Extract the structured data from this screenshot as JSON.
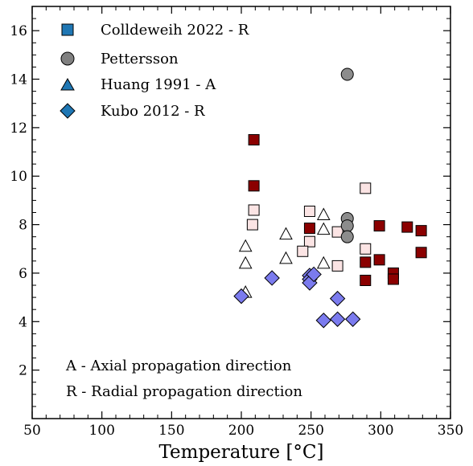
{
  "chart_data": {
    "type": "scatter",
    "xlabel": "Temperature [°C]",
    "xlim": [
      50,
      350
    ],
    "ylim": [
      0,
      17
    ],
    "xticks": [
      50,
      100,
      150,
      200,
      250,
      300,
      350
    ],
    "yticks": [
      2,
      4,
      6,
      8,
      10,
      12,
      14,
      16
    ],
    "grid": false,
    "legend_position": "top-left",
    "legend": [
      {
        "label": "Colldeweih 2022 - R",
        "marker": "square",
        "color": "#1f77b4"
      },
      {
        "label": "Pettersson",
        "marker": "circle",
        "color": "#808080"
      },
      {
        "label": "Huang 1991 - A",
        "marker": "triangle",
        "color": "#1f77b4"
      },
      {
        "label": "Kubo 2012 - R",
        "marker": "diamond",
        "color": "#1f77b4"
      }
    ],
    "series": [
      {
        "marker": "square",
        "fill": "#8b0000",
        "points": [
          [
            209,
            11.5
          ],
          [
            209,
            9.6
          ],
          [
            249,
            7.85
          ],
          [
            289,
            6.45
          ],
          [
            289,
            5.7
          ],
          [
            299,
            7.95
          ],
          [
            299,
            6.55
          ],
          [
            309,
            6.0
          ],
          [
            309,
            5.75
          ],
          [
            319,
            7.9
          ],
          [
            329,
            7.75
          ],
          [
            329,
            6.85
          ]
        ]
      },
      {
        "marker": "square",
        "fill": "#fbe4e4",
        "points": [
          [
            209,
            8.6
          ],
          [
            208,
            8.0
          ],
          [
            249,
            8.55
          ],
          [
            249,
            7.3
          ],
          [
            244,
            6.9
          ],
          [
            269,
            7.7
          ],
          [
            269,
            6.3
          ],
          [
            289,
            9.5
          ],
          [
            289,
            7.0
          ]
        ]
      },
      {
        "marker": "circle",
        "fill": "#8c8c8c",
        "points": [
          [
            276,
            14.2
          ],
          [
            276,
            8.25
          ],
          [
            276,
            7.95
          ],
          [
            276,
            7.5
          ]
        ]
      },
      {
        "marker": "triangle",
        "fill": "#ffffff",
        "points": [
          [
            203,
            7.1
          ],
          [
            203,
            6.4
          ],
          [
            203,
            5.2
          ],
          [
            232,
            7.6
          ],
          [
            232,
            6.6
          ],
          [
            259,
            8.4
          ],
          [
            259,
            7.8
          ],
          [
            259,
            6.4
          ]
        ]
      },
      {
        "marker": "diamond",
        "fill": "#7b7bee",
        "points": [
          [
            200,
            5.05
          ],
          [
            222,
            5.8
          ],
          [
            249,
            5.9
          ],
          [
            249,
            5.75
          ],
          [
            249,
            5.6
          ],
          [
            252,
            5.95
          ],
          [
            259,
            4.05
          ],
          [
            269,
            4.1
          ],
          [
            269,
            4.95
          ],
          [
            280,
            4.1
          ]
        ]
      }
    ],
    "annotations": [
      "A - Axial propagation direction",
      "R - Radial propagation direction"
    ]
  }
}
